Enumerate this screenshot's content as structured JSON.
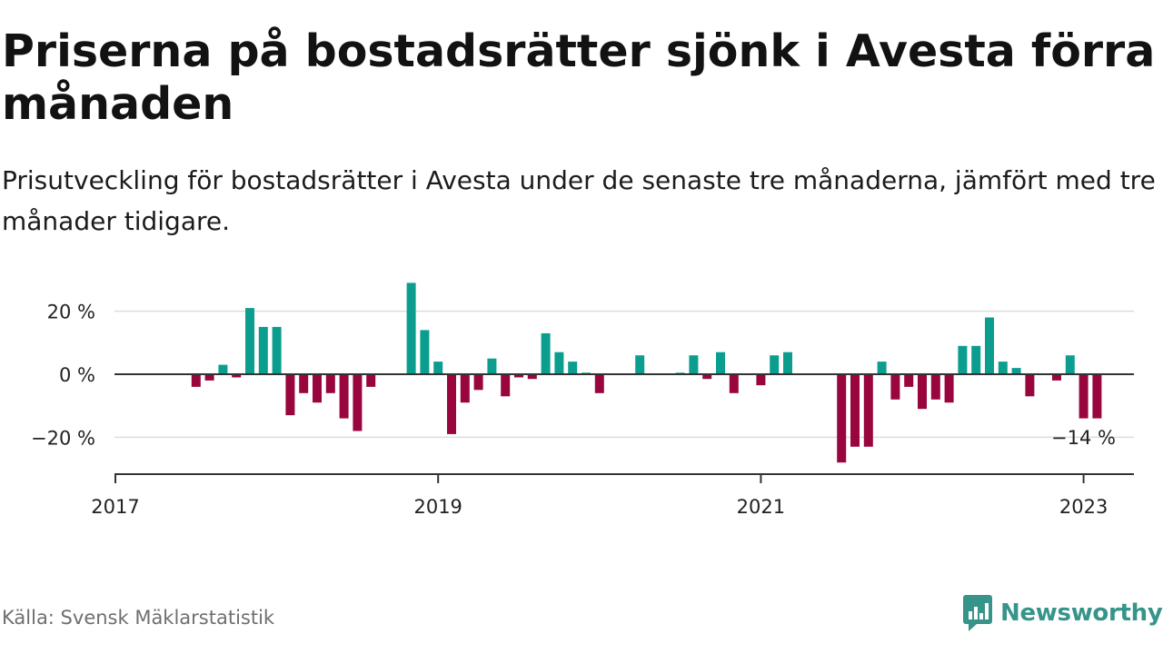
{
  "title": "Priserna på bostadsrätter sjönk i Avesta förra månaden",
  "subtitle": "Prisutveckling för bostadsrätter i Avesta under de senaste tre månaderna, jämfört med tre månader tidigare.",
  "source": "Källa: Svensk Mäklarstatistik",
  "brand": {
    "name": "Newsworthy",
    "icon": "newsworthy-logo-icon"
  },
  "colors": {
    "positive": "#0b9e8f",
    "negative": "#99063e",
    "grid": "#dddddd",
    "axis": "#333333",
    "brand": "#36948b"
  },
  "chart_data": {
    "type": "bar",
    "unit": "%",
    "ylim": [
      -30,
      30
    ],
    "yticks": [
      {
        "value": 20,
        "label": "20 %"
      },
      {
        "value": 0,
        "label": "0 %"
      },
      {
        "value": -20,
        "label": "−20 %"
      }
    ],
    "xticks": [
      {
        "value": "2017-01",
        "label": "2017"
      },
      {
        "value": "2019-01",
        "label": "2019"
      },
      {
        "value": "2021-01",
        "label": "2021"
      },
      {
        "value": "2023-01",
        "label": "2023"
      }
    ],
    "grid": true,
    "last_value_label": "−14 %",
    "series": [
      {
        "x": "2017-07",
        "value": -4
      },
      {
        "x": "2017-08",
        "value": -2
      },
      {
        "x": "2017-09",
        "value": 3
      },
      {
        "x": "2017-10",
        "value": -1
      },
      {
        "x": "2017-11",
        "value": 21
      },
      {
        "x": "2017-12",
        "value": 15
      },
      {
        "x": "2018-01",
        "value": 15
      },
      {
        "x": "2018-02",
        "value": -13
      },
      {
        "x": "2018-03",
        "value": -6
      },
      {
        "x": "2018-04",
        "value": -9
      },
      {
        "x": "2018-05",
        "value": -6
      },
      {
        "x": "2018-06",
        "value": -14
      },
      {
        "x": "2018-07",
        "value": -18
      },
      {
        "x": "2018-08",
        "value": -4
      },
      {
        "x": "2018-11",
        "value": 29
      },
      {
        "x": "2018-12",
        "value": 14
      },
      {
        "x": "2019-01",
        "value": 4
      },
      {
        "x": "2019-02",
        "value": -19
      },
      {
        "x": "2019-03",
        "value": -9
      },
      {
        "x": "2019-04",
        "value": -5
      },
      {
        "x": "2019-05",
        "value": 5
      },
      {
        "x": "2019-06",
        "value": -7
      },
      {
        "x": "2019-07",
        "value": -1
      },
      {
        "x": "2019-08",
        "value": -1.5
      },
      {
        "x": "2019-09",
        "value": 13
      },
      {
        "x": "2019-10",
        "value": 7
      },
      {
        "x": "2019-11",
        "value": 4
      },
      {
        "x": "2019-12",
        "value": 0.5
      },
      {
        "x": "2020-01",
        "value": -6
      },
      {
        "x": "2020-04",
        "value": 6
      },
      {
        "x": "2020-07",
        "value": 0.5
      },
      {
        "x": "2020-08",
        "value": 6
      },
      {
        "x": "2020-09",
        "value": -1.5
      },
      {
        "x": "2020-10",
        "value": 7
      },
      {
        "x": "2020-11",
        "value": -6
      },
      {
        "x": "2021-01",
        "value": -3.5
      },
      {
        "x": "2021-02",
        "value": 6
      },
      {
        "x": "2021-03",
        "value": 7
      },
      {
        "x": "2021-07",
        "value": -28
      },
      {
        "x": "2021-08",
        "value": -23
      },
      {
        "x": "2021-09",
        "value": -23
      },
      {
        "x": "2021-10",
        "value": 4
      },
      {
        "x": "2021-11",
        "value": -8
      },
      {
        "x": "2021-12",
        "value": -4
      },
      {
        "x": "2022-01",
        "value": -11
      },
      {
        "x": "2022-02",
        "value": -8
      },
      {
        "x": "2022-03",
        "value": -9
      },
      {
        "x": "2022-04",
        "value": 9
      },
      {
        "x": "2022-05",
        "value": 9
      },
      {
        "x": "2022-06",
        "value": 18
      },
      {
        "x": "2022-07",
        "value": 4
      },
      {
        "x": "2022-08",
        "value": 2
      },
      {
        "x": "2022-09",
        "value": -7
      },
      {
        "x": "2022-11",
        "value": -2
      },
      {
        "x": "2022-12",
        "value": 6
      },
      {
        "x": "2023-01",
        "value": -14
      },
      {
        "x": "2023-02",
        "value": -14
      }
    ]
  }
}
